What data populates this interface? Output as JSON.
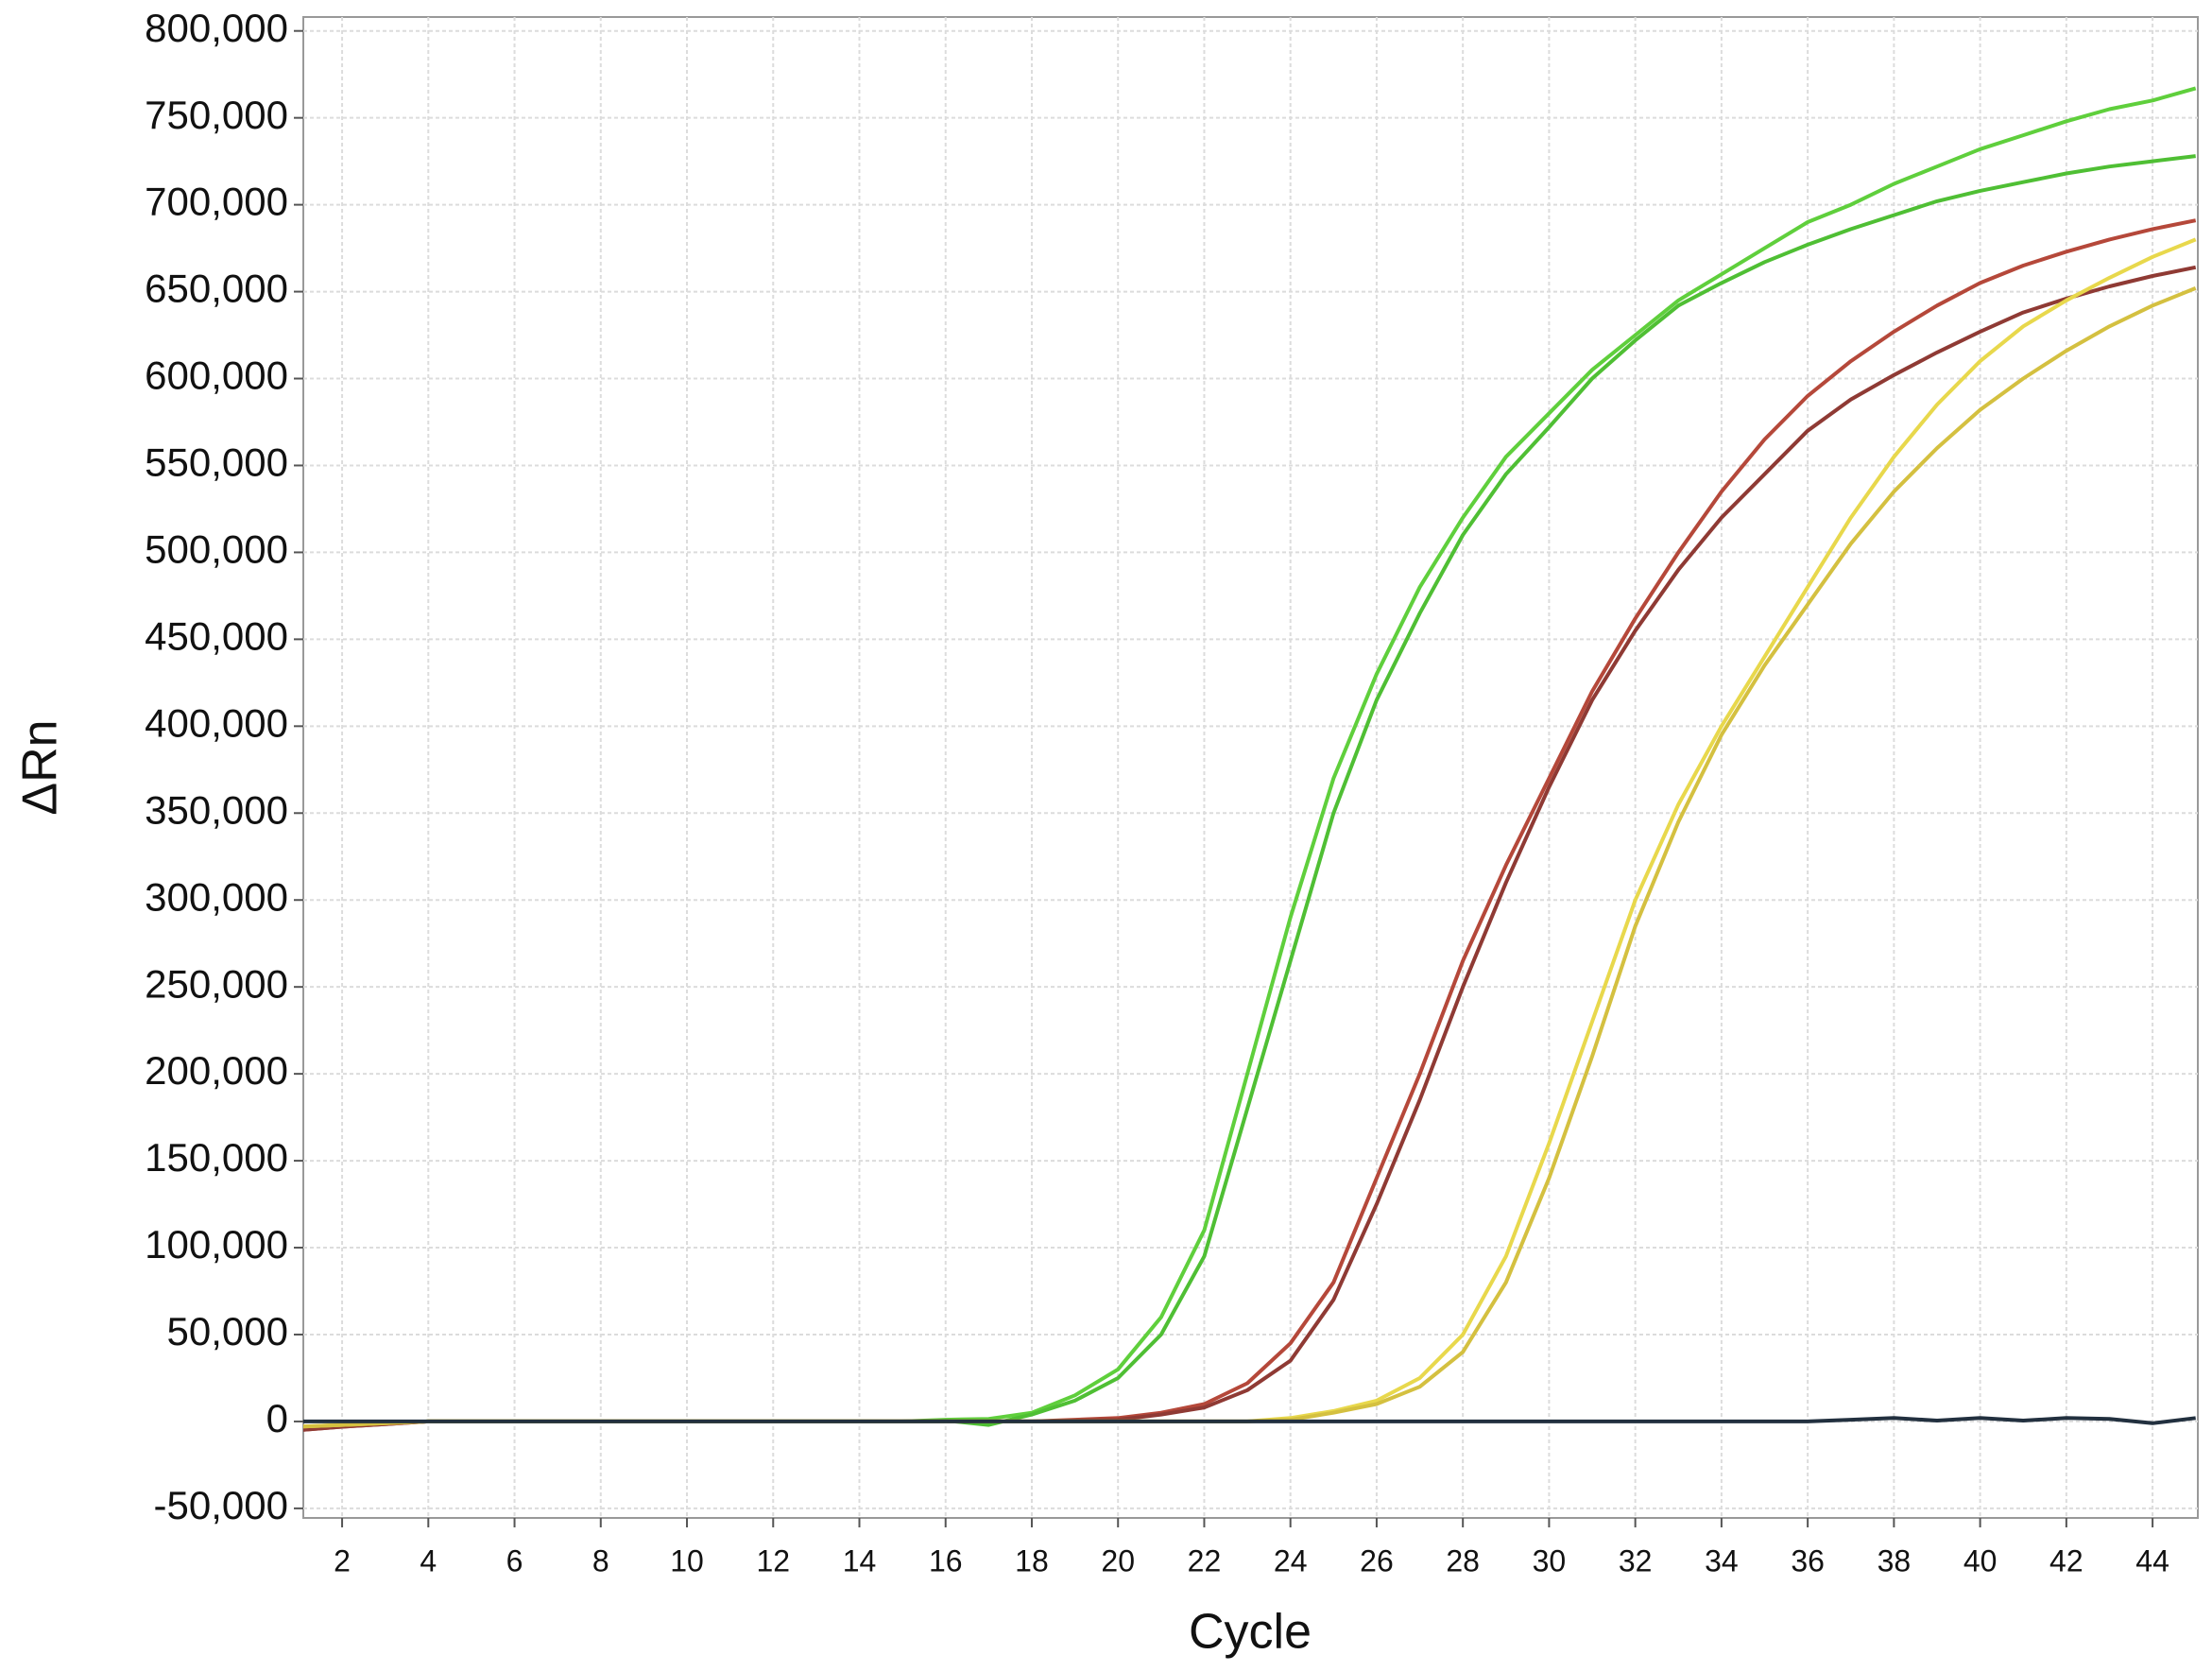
{
  "chart_data": {
    "type": "line",
    "x_label": "Cycle",
    "y_label": "ΔRn",
    "x": [
      1,
      2,
      3,
      4,
      5,
      6,
      7,
      8,
      9,
      10,
      11,
      12,
      13,
      14,
      15,
      16,
      17,
      18,
      19,
      20,
      21,
      22,
      23,
      24,
      25,
      26,
      27,
      28,
      29,
      30,
      31,
      32,
      33,
      34,
      35,
      36,
      37,
      38,
      39,
      40,
      41,
      42,
      43,
      44,
      45
    ],
    "xlim": [
      1.1,
      45.05
    ],
    "xticks": [
      2,
      4,
      6,
      8,
      10,
      12,
      14,
      16,
      18,
      20,
      22,
      24,
      26,
      28,
      30,
      32,
      34,
      36,
      38,
      40,
      42,
      44
    ],
    "ylim": [
      -55500,
      808000
    ],
    "yticks": [
      {
        "value": -50000,
        "label": "-50,000"
      },
      0,
      {
        "value": 50000,
        "label": "50,000"
      },
      {
        "value": 100000,
        "label": "100,000"
      },
      {
        "value": 150000,
        "label": "150,000"
      },
      {
        "value": 200000,
        "label": "200,000"
      },
      {
        "value": 250000,
        "label": "250,000"
      },
      {
        "value": 300000,
        "label": "300,000"
      },
      {
        "value": 350000,
        "label": "350,000"
      },
      {
        "value": 400000,
        "label": "400,000"
      },
      {
        "value": 450000,
        "label": "450,000"
      },
      {
        "value": 500000,
        "label": "500,000"
      },
      {
        "value": 550000,
        "label": "550,000"
      },
      {
        "value": 600000,
        "label": "600,000"
      },
      {
        "value": 650000,
        "label": "650,000"
      },
      {
        "value": 700000,
        "label": "700,000"
      },
      {
        "value": 750000,
        "label": "750,000"
      },
      {
        "value": 800000,
        "label": "800,000"
      }
    ],
    "grid": true,
    "series": [
      {
        "color": "#5fcf3c",
        "values": [
          -4000,
          -2500,
          -1000,
          0,
          0,
          0,
          0,
          0,
          0,
          0,
          0,
          0,
          0,
          0,
          0,
          1000,
          1500,
          5000,
          15000,
          30000,
          60000,
          110000,
          200000,
          290000,
          370000,
          430000,
          480000,
          520000,
          555000,
          580000,
          605000,
          625000,
          645000,
          660000,
          675000,
          690000,
          700000,
          712000,
          722000,
          732000,
          740000,
          748000,
          755000,
          760000,
          767000
        ]
      },
      {
        "color": "#4fbf34",
        "values": [
          -4000,
          -2500,
          -1000,
          0,
          0,
          0,
          0,
          0,
          0,
          0,
          0,
          0,
          0,
          0,
          0,
          500,
          -2000,
          4000,
          12000,
          25000,
          50000,
          95000,
          180000,
          265000,
          350000,
          415000,
          465000,
          510000,
          545000,
          572000,
          600000,
          622000,
          642000,
          655000,
          667000,
          677000,
          686000,
          694000,
          702000,
          708000,
          713000,
          718000,
          722000,
          725000,
          728000
        ]
      },
      {
        "color": "#b5483a",
        "values": [
          -5000,
          -3000,
          -1500,
          0,
          0,
          0,
          0,
          0,
          0,
          0,
          0,
          0,
          0,
          0,
          0,
          0,
          0,
          0,
          1000,
          2000,
          5000,
          10000,
          22000,
          45000,
          80000,
          140000,
          200000,
          265000,
          320000,
          370000,
          420000,
          462000,
          500000,
          535000,
          565000,
          590000,
          610000,
          627000,
          642000,
          655000,
          665000,
          673000,
          680000,
          686000,
          691000
        ]
      },
      {
        "color": "#8f3a34",
        "values": [
          -5000,
          -3000,
          -1500,
          0,
          0,
          0,
          0,
          0,
          0,
          0,
          0,
          0,
          0,
          0,
          0,
          0,
          0,
          0,
          500,
          1000,
          4000,
          8000,
          18000,
          35000,
          70000,
          125000,
          185000,
          250000,
          310000,
          365000,
          415000,
          455000,
          490000,
          520000,
          545000,
          570000,
          588000,
          602000,
          615000,
          627000,
          638000,
          646000,
          653000,
          659000,
          664000
        ]
      },
      {
        "color": "#e8d84c",
        "values": [
          -3000,
          -2000,
          -1000,
          0,
          0,
          0,
          0,
          0,
          0,
          0,
          0,
          0,
          0,
          0,
          0,
          0,
          0,
          0,
          0,
          0,
          0,
          0,
          0,
          2000,
          6000,
          12000,
          25000,
          50000,
          95000,
          160000,
          230000,
          300000,
          355000,
          400000,
          440000,
          480000,
          520000,
          555000,
          585000,
          610000,
          630000,
          645000,
          658000,
          670000,
          680000
        ]
      },
      {
        "color": "#d4c040",
        "values": [
          -3000,
          -2000,
          -1000,
          0,
          0,
          0,
          0,
          0,
          0,
          0,
          0,
          0,
          0,
          0,
          0,
          0,
          0,
          0,
          0,
          0,
          0,
          0,
          0,
          1000,
          5000,
          10000,
          20000,
          40000,
          80000,
          140000,
          210000,
          285000,
          345000,
          395000,
          435000,
          470000,
          505000,
          535000,
          560000,
          582000,
          600000,
          616000,
          630000,
          642000,
          652000
        ]
      },
      {
        "color": "#22303f",
        "values": [
          0,
          0,
          0,
          0,
          0,
          0,
          0,
          0,
          0,
          0,
          0,
          0,
          0,
          0,
          0,
          0,
          0,
          0,
          0,
          0,
          0,
          0,
          0,
          0,
          0,
          0,
          0,
          0,
          0,
          0,
          0,
          0,
          0,
          0,
          0,
          0,
          1000,
          2000,
          500,
          2000,
          500,
          2000,
          1500,
          -1000,
          2000
        ]
      }
    ]
  }
}
